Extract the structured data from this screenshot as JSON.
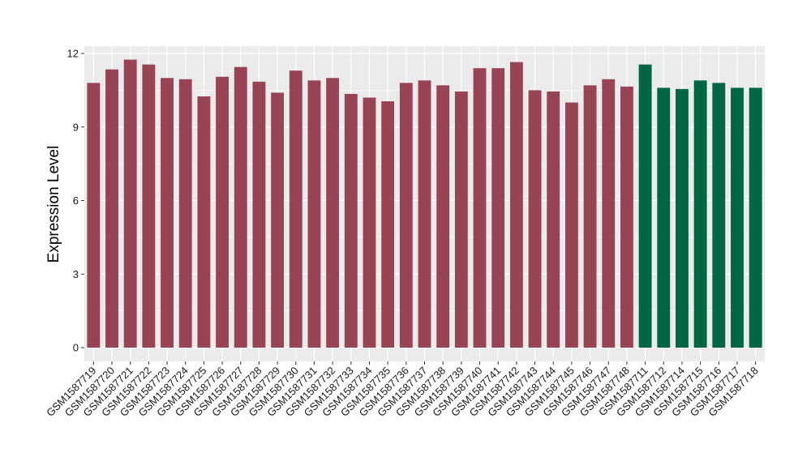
{
  "chart_data": {
    "type": "bar",
    "title": "",
    "xlabel": "",
    "ylabel": "Expression Level",
    "ylim": [
      0,
      12.6
    ],
    "yticks": [
      0,
      3,
      6,
      9,
      12
    ],
    "grid": true,
    "legend": "none",
    "colors": {
      "group1": "#994455",
      "group2": "#006644",
      "panel": "#ebebeb",
      "grid": "#ffffff"
    },
    "categories": [
      "GSM1587719",
      "GSM1587720",
      "GSM1587721",
      "GSM1587722",
      "GSM1587723",
      "GSM1587724",
      "GSM1587725",
      "GSM1587726",
      "GSM1587727",
      "GSM1587728",
      "GSM1587729",
      "GSM1587730",
      "GSM1587731",
      "GSM1587732",
      "GSM1587733",
      "GSM1587734",
      "GSM1587735",
      "GSM1587736",
      "GSM1587737",
      "GSM1587738",
      "GSM1587739",
      "GSM1587740",
      "GSM1587741",
      "GSM1587742",
      "GSM1587743",
      "GSM1587744",
      "GSM1587745",
      "GSM1587746",
      "GSM1587747",
      "GSM1587748",
      "GSM1587711",
      "GSM1587712",
      "GSM1587714",
      "GSM1587715",
      "GSM1587716",
      "GSM1587717",
      "GSM1587718"
    ],
    "values": [
      10.8,
      11.35,
      11.75,
      11.55,
      11.0,
      10.95,
      10.25,
      11.05,
      11.45,
      10.85,
      10.4,
      11.3,
      10.9,
      11.0,
      10.35,
      10.2,
      10.05,
      10.8,
      10.9,
      10.7,
      10.45,
      11.4,
      11.4,
      11.65,
      10.5,
      10.45,
      10.0,
      10.7,
      10.95,
      10.65,
      11.55,
      10.6,
      10.55,
      10.9,
      10.8,
      10.6,
      10.6
    ],
    "groups": [
      "group1",
      "group1",
      "group1",
      "group1",
      "group1",
      "group1",
      "group1",
      "group1",
      "group1",
      "group1",
      "group1",
      "group1",
      "group1",
      "group1",
      "group1",
      "group1",
      "group1",
      "group1",
      "group1",
      "group1",
      "group1",
      "group1",
      "group1",
      "group1",
      "group1",
      "group1",
      "group1",
      "group1",
      "group1",
      "group1",
      "group2",
      "group2",
      "group2",
      "group2",
      "group2",
      "group2",
      "group2"
    ]
  }
}
